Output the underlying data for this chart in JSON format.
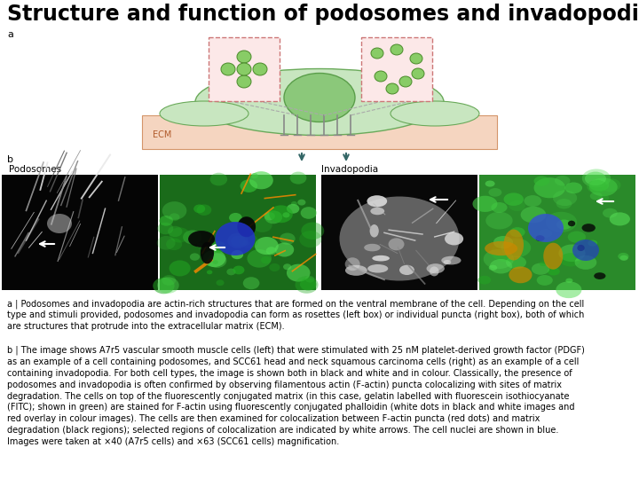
{
  "title": "Structure and function of podosomes and invadopodia",
  "title_fontsize": 17,
  "title_fontweight": "bold",
  "background_color": "#ffffff",
  "caption_a": "a | Podosomes and invadopodia are actin-rich structures that are formed on the ventral membrane of the cell. Depending on the cell\ntype and stimuli provided, podosomes and invadopodia can form as rosettes (left box) or individual puncta (right box), both of which\nare structures that protrude into the extracellular matrix (ECM).",
  "caption_b": "b | The image shows A7r5 vascular smooth muscle cells (left) that were stimulated with 25 nM platelet-derived growth factor (PDGF)\nas an example of a cell containing podosomes, and SCC61 head and neck squamous carcinoma cells (right) as an example of a cell\ncontaining invadopodia. For both cell types, the image is shown both in black and white and in colour. Classically, the presence of\npodosomes and invadopodia is often confirmed by observing filamentous actin (F-actin) puncta colocalizing with sites of matrix\ndegradation. The cells on top of the fluorescently conjugated matrix (in this case, gelatin labelled with fluorescein isothiocyanate\n(FITC); shown in green) are stained for F-actin using fluorescently conjugated phalloidin (white dots in black and white images and\nred overlay in colour images). The cells are then examined for colocalization between F-actin puncta (red dots) and matrix\ndegradation (black regions); selected regions of colocalization are indicated by white arrows. The cell nuclei are shown in blue.\nImages were taken at ×40 (A7r5 cells) and ×63 (SCC61 cells) magnification.",
  "caption_fontsize": 7.0,
  "fig_width": 7.2,
  "fig_height": 5.4
}
